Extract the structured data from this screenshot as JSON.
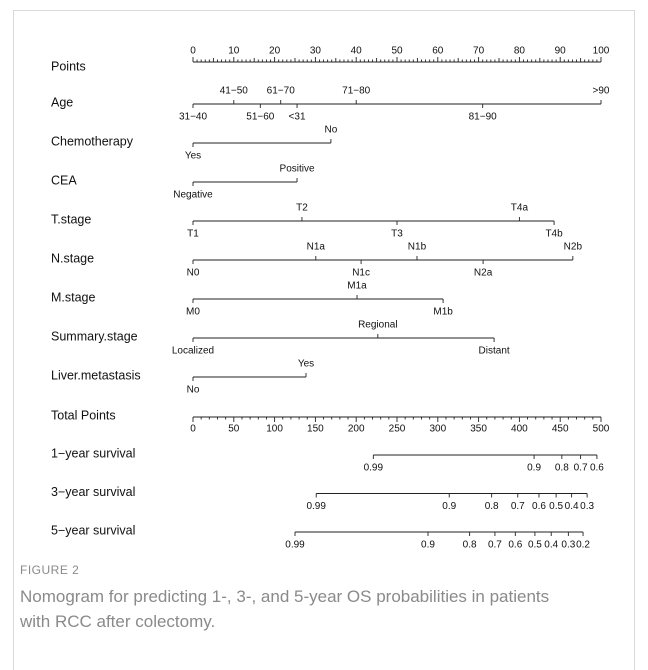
{
  "chart_data": {
    "type": "nomogram",
    "points": {
      "label": "Points",
      "lim": [
        0,
        100
      ],
      "ticks": [
        0,
        10,
        20,
        30,
        40,
        50,
        60,
        70,
        80,
        90,
        100
      ]
    },
    "variables": [
      {
        "name": "Age",
        "levels": [
          {
            "label": "31−40",
            "points": 0
          },
          {
            "label": "41−50",
            "points": 10
          },
          {
            "label": "51−60",
            "points": 16.5
          },
          {
            "label": "61−70",
            "points": 21.5
          },
          {
            "label": "<31",
            "points": 25.5
          },
          {
            "label": "71−80",
            "points": 40
          },
          {
            "label": "81−90",
            "points": 71
          },
          {
            "label": ">90",
            "points": 100
          }
        ]
      },
      {
        "name": "Chemotherapy",
        "levels": [
          {
            "label": "Yes",
            "points": 0
          },
          {
            "label": "No",
            "points": 33.8
          }
        ]
      },
      {
        "name": "CEA",
        "levels": [
          {
            "label": "Negative",
            "points": 0
          },
          {
            "label": "Positive",
            "points": 25.5
          }
        ]
      },
      {
        "name": "T.stage",
        "levels": [
          {
            "label": "T1",
            "points": 0
          },
          {
            "label": "T2",
            "points": 26.7
          },
          {
            "label": "T3",
            "points": 50
          },
          {
            "label": "T4a",
            "points": 80
          },
          {
            "label": "T4b",
            "points": 88.5
          }
        ]
      },
      {
        "name": "N.stage",
        "levels": [
          {
            "label": "N0",
            "points": 0
          },
          {
            "label": "N1a",
            "points": 30.1
          },
          {
            "label": "N1c",
            "points": 41.2
          },
          {
            "label": "N1b",
            "points": 54.9
          },
          {
            "label": "N2a",
            "points": 71.1
          },
          {
            "label": "N2b",
            "points": 93.1
          }
        ]
      },
      {
        "name": "M.stage",
        "levels": [
          {
            "label": "M0",
            "points": 0
          },
          {
            "label": "M1a",
            "points": 40.2
          },
          {
            "label": "M1b",
            "points": 61.3
          }
        ]
      },
      {
        "name": "Summary.stage",
        "levels": [
          {
            "label": "Localized",
            "points": 0
          },
          {
            "label": "Regional",
            "points": 45.3
          },
          {
            "label": "Distant",
            "points": 73.8
          }
        ]
      },
      {
        "name": "Liver.metastasis",
        "levels": [
          {
            "label": "No",
            "points": 0
          },
          {
            "label": "Yes",
            "points": 27.7
          }
        ]
      }
    ],
    "total_points": {
      "label": "Total Points",
      "lim": [
        0,
        500
      ],
      "ticks": [
        0,
        50,
        100,
        150,
        200,
        250,
        300,
        350,
        400,
        450,
        500
      ]
    },
    "survival": [
      {
        "name": "1−year survival",
        "ticks": [
          {
            "probability": 0.99,
            "total_points": 221
          },
          {
            "probability": 0.9,
            "total_points": 418
          },
          {
            "probability": 0.8,
            "total_points": 452
          },
          {
            "probability": 0.7,
            "total_points": 475
          },
          {
            "probability": 0.6,
            "total_points": 495
          }
        ]
      },
      {
        "name": "3−year survival",
        "ticks": [
          {
            "probability": 0.99,
            "total_points": 151
          },
          {
            "probability": 0.9,
            "total_points": 314
          },
          {
            "probability": 0.8,
            "total_points": 366
          },
          {
            "probability": 0.7,
            "total_points": 398
          },
          {
            "probability": 0.6,
            "total_points": 424
          },
          {
            "probability": 0.5,
            "total_points": 445
          },
          {
            "probability": 0.4,
            "total_points": 464
          },
          {
            "probability": 0.3,
            "total_points": 483
          }
        ]
      },
      {
        "name": "5−year survival",
        "ticks": [
          {
            "probability": 0.99,
            "total_points": 125
          },
          {
            "probability": 0.9,
            "total_points": 288
          },
          {
            "probability": 0.8,
            "total_points": 339
          },
          {
            "probability": 0.7,
            "total_points": 370
          },
          {
            "probability": 0.6,
            "total_points": 395
          },
          {
            "probability": 0.5,
            "total_points": 419
          },
          {
            "probability": 0.4,
            "total_points": 439
          },
          {
            "probability": 0.3,
            "total_points": 460
          },
          {
            "probability": 0.2,
            "total_points": 478
          }
        ]
      }
    ]
  },
  "caption": {
    "label": "FIGURE 2",
    "text": "Nomogram for predicting 1-, 3-, and 5-year OS probabilities in patients with RCC after colectomy."
  }
}
